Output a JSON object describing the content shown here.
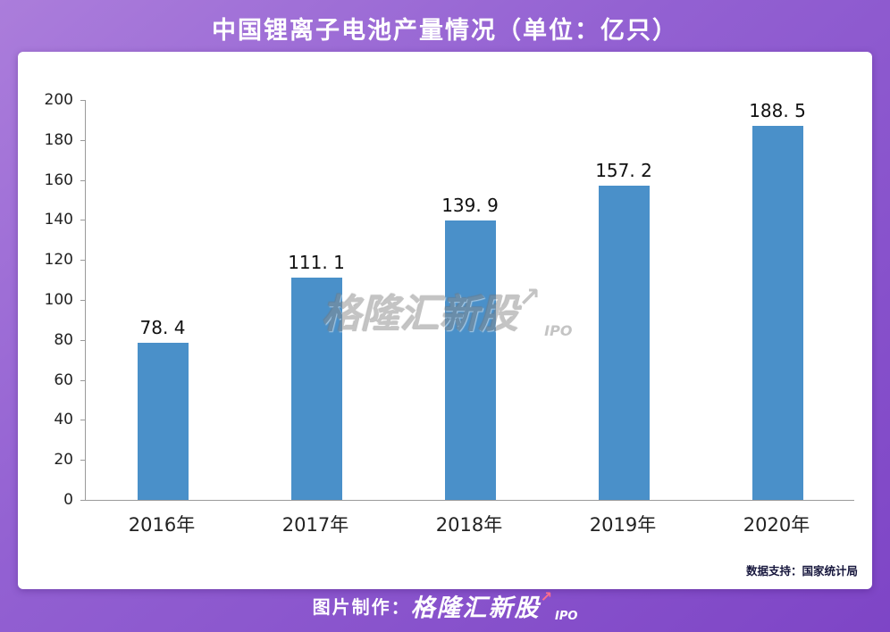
{
  "title": "中国锂离子电池产量情况（单位：亿只）",
  "colors": {
    "bar": "#4a90c9",
    "axis": "#9a9a9a",
    "title_text": "#ffffff"
  },
  "watermark": {
    "brand": "格隆汇新股",
    "arrow": "↗",
    "sub": "IPO"
  },
  "source_note": "数据支持：国家统计局",
  "footer": {
    "prefix": "图片制作：",
    "brand": "格隆汇新股",
    "arrow": "↗",
    "sub": "IPO"
  },
  "chart_data": {
    "type": "bar",
    "title": "中国锂离子电池产量情况（单位：亿只）",
    "categories": [
      "2016年",
      "2017年",
      "2018年",
      "2019年",
      "2020年"
    ],
    "values": [
      78.4,
      111.1,
      139.9,
      157.2,
      188.5
    ],
    "value_labels": [
      "78. 4",
      "111. 1",
      "139. 9",
      "157. 2",
      "188. 5"
    ],
    "xlabel": "",
    "ylabel": "",
    "ylim": [
      0,
      200
    ],
    "yticks": [
      0,
      20,
      40,
      60,
      80,
      100,
      120,
      140,
      160,
      180,
      200
    ],
    "grid": false,
    "legend": false,
    "bar_color": "#4a90c9"
  }
}
